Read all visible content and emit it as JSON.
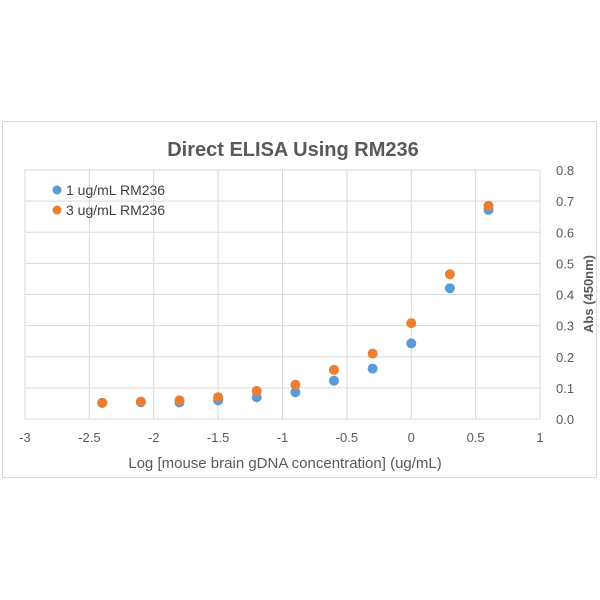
{
  "chart_data": {
    "type": "scatter",
    "title": "Direct ELISA Using RM236",
    "xlabel": "Log [mouse brain gDNA concentration] (ug/mL)",
    "ylabel": "Abs (450nm)",
    "xlim": [
      -3,
      1
    ],
    "ylim": [
      0,
      0.8
    ],
    "x_ticks": [
      "-3",
      "-2.5",
      "-2",
      "-1.5",
      "-1",
      "-0.5",
      "0",
      "0.5",
      "1"
    ],
    "x_tick_values": [
      -3,
      -2.5,
      -2,
      -1.5,
      -1,
      -0.5,
      0,
      0.5,
      1
    ],
    "y_ticks": [
      "0.0",
      "0.1",
      "0.2",
      "0.3",
      "0.4",
      "0.5",
      "0.6",
      "0.7",
      "0.8"
    ],
    "y_tick_values": [
      0,
      0.1,
      0.2,
      0.3,
      0.4,
      0.5,
      0.6,
      0.7,
      0.8
    ],
    "y_axis_position": "right",
    "grid": true,
    "legend_position": "top-left",
    "x": [
      -2.4,
      -2.1,
      -1.8,
      -1.5,
      -1.2,
      -0.9,
      -0.6,
      -0.3,
      0.0,
      0.3,
      0.6
    ],
    "series": [
      {
        "name": "1 ug/mL RM236",
        "color": "#5B9BD5",
        "values": [
          0.052,
          0.054,
          0.053,
          0.06,
          0.07,
          0.086,
          0.123,
          0.162,
          0.243,
          0.42,
          0.672
        ]
      },
      {
        "name": "3 ug/mL RM236",
        "color": "#ED7D31",
        "values": [
          0.052,
          0.056,
          0.06,
          0.07,
          0.09,
          0.11,
          0.158,
          0.21,
          0.308,
          0.465,
          0.685
        ]
      }
    ]
  }
}
